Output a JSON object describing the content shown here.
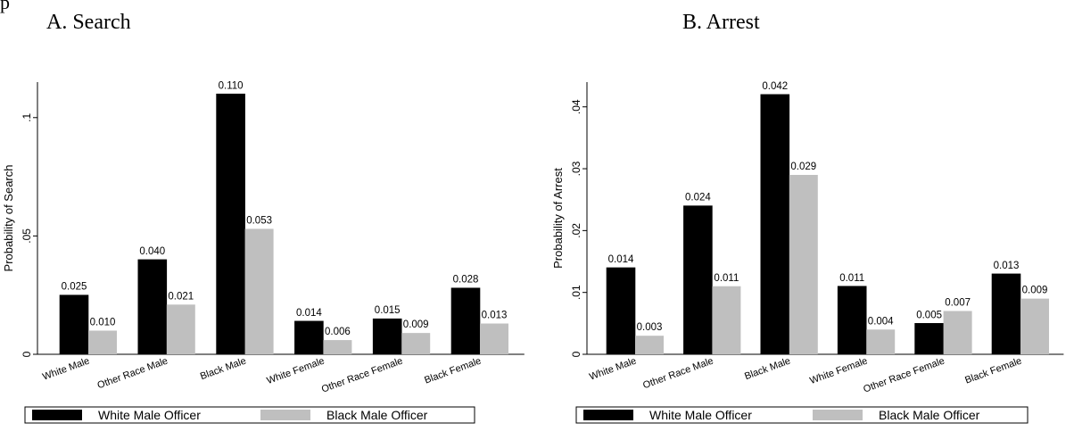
{
  "page_tag": "p",
  "chart_data": [
    {
      "type": "bar",
      "title": "A.  Search",
      "xlabel": "",
      "ylabel": "Probability of Search",
      "categories": [
        "White Male",
        "Other Race Male",
        "Black Male",
        "White Female",
        "Other Race Female",
        "Black Female"
      ],
      "series": [
        {
          "name": "White Male Officer",
          "color": "#000000",
          "values": [
            0.025,
            0.04,
            0.11,
            0.014,
            0.015,
            0.028
          ],
          "labels": [
            "0.025",
            "0.040",
            "0.110",
            "0.014",
            "0.015",
            "0.028"
          ]
        },
        {
          "name": "Black Male Officer",
          "color": "#bfbfbf",
          "values": [
            0.01,
            0.021,
            0.053,
            0.006,
            0.009,
            0.013
          ],
          "labels": [
            "0.010",
            "0.021",
            "0.053",
            "0.006",
            "0.009",
            "0.013"
          ]
        }
      ],
      "ylim": [
        0,
        0.115
      ],
      "yticks": [
        0,
        0.05,
        0.1
      ],
      "ytick_labels": [
        "0",
        ".05",
        ".1"
      ],
      "grid": false,
      "legend_position": "bottom"
    },
    {
      "type": "bar",
      "title": "B. Arrest",
      "xlabel": "",
      "ylabel": "Probability of Arrest",
      "categories": [
        "White Male",
        "Other Race Male",
        "Black Male",
        "White Female",
        "Other Race Female",
        "Black Female"
      ],
      "series": [
        {
          "name": "White Male Officer",
          "color": "#000000",
          "values": [
            0.014,
            0.024,
            0.042,
            0.011,
            0.005,
            0.013
          ],
          "labels": [
            "0.014",
            "0.024",
            "0.042",
            "0.011",
            "0.005",
            "0.013"
          ]
        },
        {
          "name": "Black Male Officer",
          "color": "#bfbfbf",
          "values": [
            0.003,
            0.011,
            0.029,
            0.004,
            0.007,
            0.009
          ],
          "labels": [
            "0.003",
            "0.011",
            "0.029",
            "0.004",
            "0.007",
            "0.009"
          ]
        }
      ],
      "ylim": [
        0,
        0.044
      ],
      "yticks": [
        0,
        0.01,
        0.02,
        0.03,
        0.04
      ],
      "ytick_labels": [
        "0",
        ".01",
        ".02",
        ".03",
        ".04"
      ],
      "grid": false,
      "legend_position": "bottom"
    }
  ]
}
